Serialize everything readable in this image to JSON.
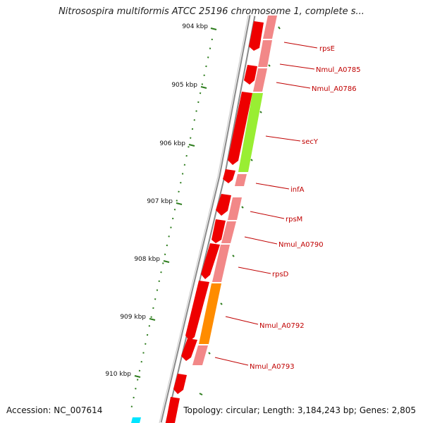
{
  "title": "Nitrosospira multiformis ATCC 25196 chromosome 1, complete s...",
  "footer": {
    "accession": "Accession: NC_007614",
    "summary": "Topology: circular; Length: 3,184,243 bp; Genes: 2,805"
  },
  "ticks": [
    "904 kbp",
    "905 kbp",
    "906 kbp",
    "907 kbp",
    "908 kbp",
    "909 kbp",
    "910 kbp"
  ],
  "genes": [
    "rpsE",
    "Nmul_A0785",
    "Nmul_A0786",
    "secY",
    "infA",
    "rpsM",
    "Nmul_A0790",
    "rpsD",
    "Nmul_A0792",
    "Nmul_A0793"
  ],
  "colors": {
    "backbone": "#808080",
    "gene_red": "#ee0000",
    "gene_pink": "#f28888",
    "secY": "#99ee33",
    "Nmul_A0792": "#ff8c00",
    "tick": "#2e7d1e",
    "cyan": "#00e5ff",
    "label": "#c00000"
  }
}
